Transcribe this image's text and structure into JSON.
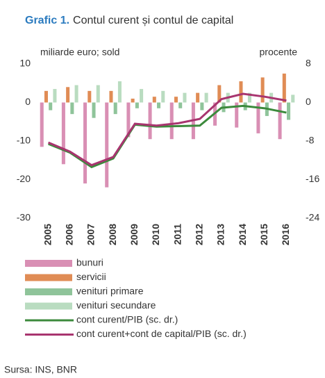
{
  "chart_data": {
    "type": "bar_line",
    "title_prefix": "Grafic 1.",
    "title": "Contul curent și contul de capital",
    "y_label": "miliarde euro; sold",
    "y2_label": "procente",
    "source": "Sursa: INS, BNR",
    "categories": [
      "2005",
      "2006",
      "2007",
      "2008",
      "2009",
      "2010",
      "2011",
      "2012",
      "2013",
      "2014",
      "2015",
      "2016"
    ],
    "ylim": [
      -30,
      10
    ],
    "yticks": [
      -30,
      -20,
      -10,
      0,
      10
    ],
    "y2lim": [
      -24,
      8
    ],
    "y2ticks": [
      -24,
      -16,
      -8,
      0,
      8
    ],
    "series": [
      {
        "name": "bunuri",
        "kind": "bar",
        "color": "#d98fb4",
        "values": [
          -11.5,
          -16,
          -21,
          -22,
          -9,
          -9.5,
          -9.5,
          -9.5,
          -6,
          -6.5,
          -8,
          -9.5
        ]
      },
      {
        "name": "servicii",
        "kind": "bar",
        "color": "#e08c55",
        "values": [
          3,
          4,
          3,
          3,
          1,
          1.5,
          1.5,
          2.5,
          4.5,
          5.5,
          6.5,
          7.5
        ]
      },
      {
        "name": "venituri primare",
        "kind": "bar",
        "color": "#8fc49a",
        "values": [
          -2,
          -3,
          -4,
          -3,
          -1.5,
          -1.5,
          -1.5,
          -2,
          -2.5,
          -2,
          -3.5,
          -4.5
        ]
      },
      {
        "name": "venituri secundare",
        "kind": "bar",
        "color": "#b9dcc0",
        "values": [
          3.5,
          4.5,
          4.5,
          5.5,
          3.5,
          3,
          2.5,
          2.5,
          2.5,
          2.5,
          2.5,
          2
        ]
      },
      {
        "name": "cont curent/PIB (sc. dr.)",
        "kind": "line",
        "axis": "y2",
        "color": "#3c8a3c",
        "values": [
          -8.6,
          -10.4,
          -13.4,
          -11.6,
          -4.6,
          -5.0,
          -4.9,
          -4.8,
          -1.1,
          -0.7,
          -1.2,
          -2.1
        ]
      },
      {
        "name": "cont curent+cont de capital/PIB (sc. dr.)",
        "kind": "line",
        "axis": "y2",
        "color": "#a8356f",
        "values": [
          -8.3,
          -10.2,
          -13.0,
          -11.3,
          -4.4,
          -4.8,
          -4.3,
          -3.4,
          0.7,
          1.8,
          1.2,
          0.4
        ]
      }
    ]
  }
}
